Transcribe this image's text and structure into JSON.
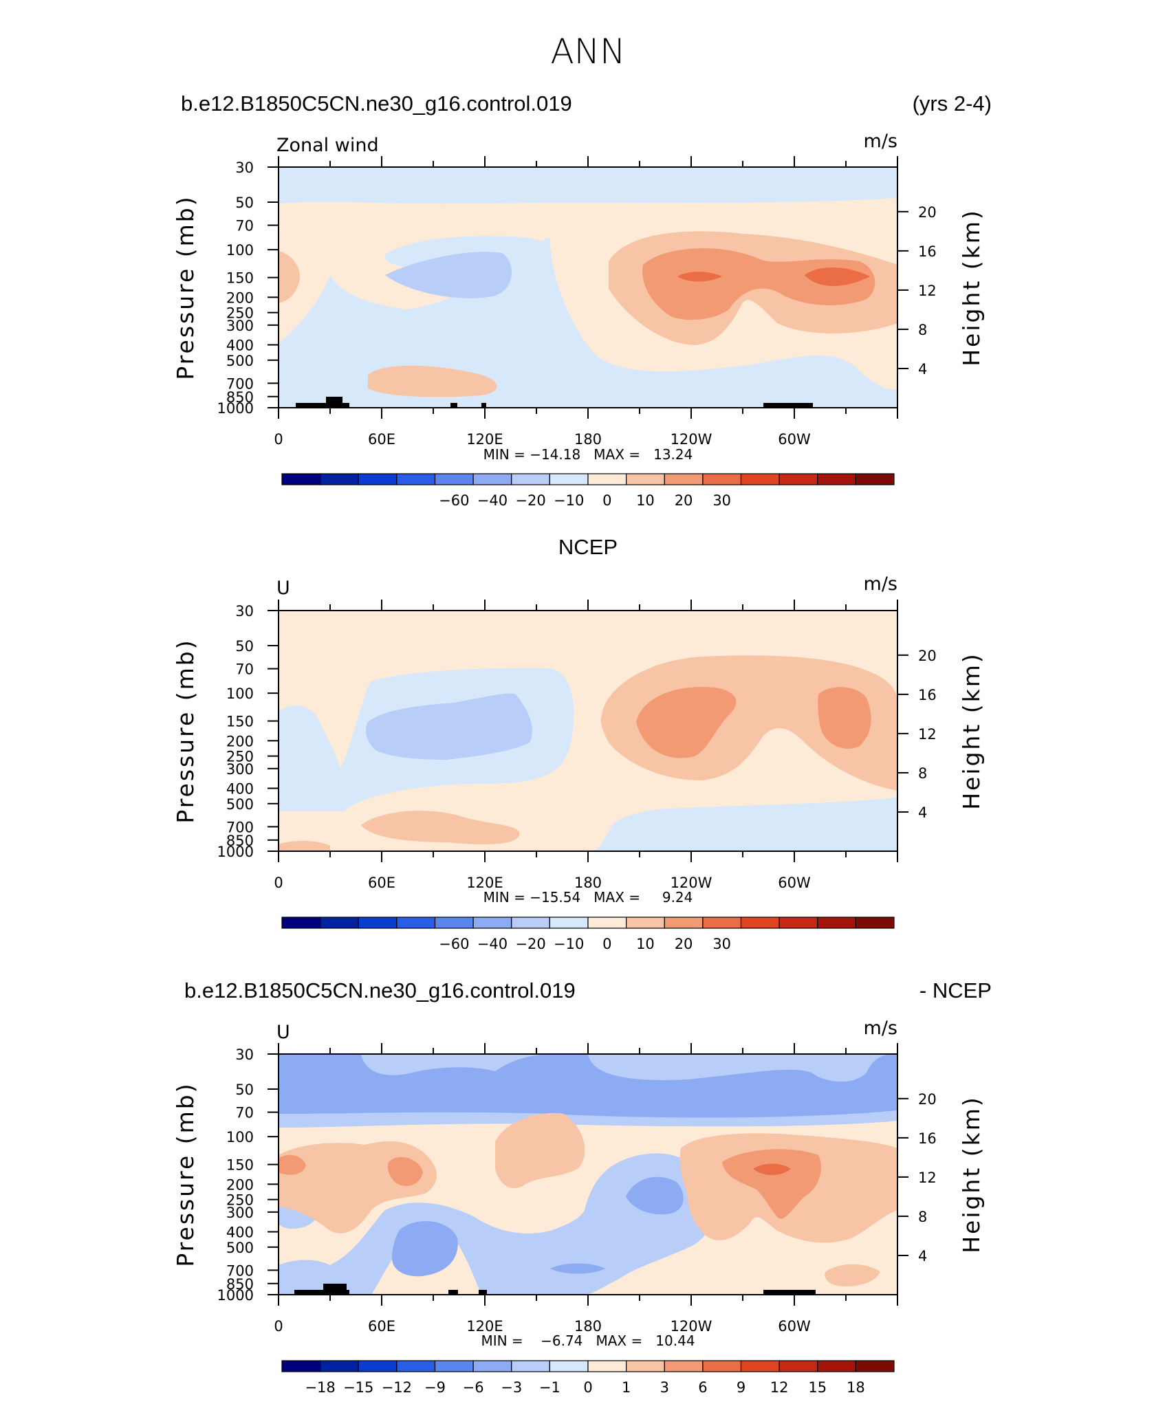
{
  "title": "ANN",
  "chart_data": [
    {
      "type": "heatmap",
      "title_left": "b.e12.B1850C5CN.ne30_g16.control.019",
      "title_center": "",
      "title_right": "(yrs 2-4)",
      "label_left": "Zonal wind",
      "units": "m/s",
      "ylabel": "Pressure (mb)",
      "ylabel_right": "Height (km)",
      "x_ticks": [
        "0",
        "60E",
        "120E",
        "180",
        "120W",
        "60W"
      ],
      "y_ticks": [
        "30",
        "50",
        "70",
        "100",
        "150",
        "200",
        "250",
        "300",
        "400",
        "500",
        "700",
        "850",
        "1000"
      ],
      "y_right_ticks": [
        "20",
        "16",
        "12",
        "8",
        "4"
      ],
      "min_max": "MIN = −14.18   MAX =   13.24",
      "min": -14.18,
      "max": 13.24,
      "colorbar_labels": [
        "−60",
        "−40",
        "−20",
        "−10",
        "0",
        "10",
        "20",
        "30"
      ],
      "colorbar_colors": [
        "#00007f",
        "#0022a0",
        "#0a3cd0",
        "#2a5ee8",
        "#5a86ee",
        "#8cabf2",
        "#b8cdf8",
        "#d8e8fb",
        "#fdebd8",
        "#f8c4a6",
        "#f29a74",
        "#eb6d46",
        "#e04420",
        "#c52814",
        "#a4140a",
        "#7d0a04"
      ],
      "regions": [
        {
          "label": "background",
          "value": 2,
          "color": "#fdebd8"
        },
        {
          "label": "stratospheric easterlies",
          "value": -4,
          "color": "#d8e8fb"
        },
        {
          "label": "tropical easterlies",
          "value": -4,
          "color": "#d8e8fb"
        },
        {
          "label": "easterly core 120E",
          "value": -12,
          "color": "#b8cdf8"
        },
        {
          "label": "westerly jet 120W",
          "value": 7,
          "color": "#f8c4a6"
        },
        {
          "label": "westerly jet core",
          "value": 10,
          "color": "#f29a74"
        },
        {
          "label": "westerly jet maximum",
          "value": 13,
          "color": "#eb6d46"
        }
      ]
    },
    {
      "type": "heatmap",
      "title_left": "",
      "title_center": "NCEP",
      "title_right": "",
      "label_left": "U",
      "units": "m/s",
      "ylabel": "Pressure (mb)",
      "ylabel_right": "Height (km)",
      "x_ticks": [
        "0",
        "60E",
        "120E",
        "180",
        "120W",
        "60W"
      ],
      "y_ticks": [
        "30",
        "50",
        "70",
        "100",
        "150",
        "200",
        "250",
        "300",
        "400",
        "500",
        "700",
        "850",
        "1000"
      ],
      "y_right_ticks": [
        "20",
        "16",
        "12",
        "8",
        "4"
      ],
      "min_max": "MIN = −15.54   MAX =     9.24",
      "min": -15.54,
      "max": 9.24,
      "colorbar_labels": [
        "−60",
        "−40",
        "−20",
        "−10",
        "0",
        "10",
        "20",
        "30"
      ],
      "colorbar_colors": [
        "#00007f",
        "#0022a0",
        "#0a3cd0",
        "#2a5ee8",
        "#5a86ee",
        "#8cabf2",
        "#b8cdf8",
        "#d8e8fb",
        "#fdebd8",
        "#f8c4a6",
        "#f29a74",
        "#eb6d46",
        "#e04420",
        "#c52814",
        "#a4140a",
        "#7d0a04"
      ],
      "regions": [
        {
          "label": "background",
          "value": 2,
          "color": "#fdebd8"
        },
        {
          "label": "tropical easterlies",
          "value": -4,
          "color": "#d8e8fb"
        },
        {
          "label": "easterly core 120E",
          "value": -12,
          "color": "#b8cdf8"
        },
        {
          "label": "westerly jet",
          "value": 7,
          "color": "#f8c4a6"
        },
        {
          "label": "westerly jet core",
          "value": 9,
          "color": "#f29a74"
        }
      ]
    },
    {
      "type": "heatmap",
      "title_left": "b.e12.B1850C5CN.ne30_g16.control.019",
      "title_center": "",
      "title_right": "- NCEP",
      "label_left": "U",
      "units": "m/s",
      "ylabel": "Pressure (mb)",
      "ylabel_right": "Height (km)",
      "x_ticks": [
        "0",
        "60E",
        "120E",
        "180",
        "120W",
        "60W"
      ],
      "y_ticks": [
        "30",
        "50",
        "70",
        "100",
        "150",
        "200",
        "250",
        "300",
        "400",
        "500",
        "700",
        "850",
        "1000"
      ],
      "y_right_ticks": [
        "20",
        "16",
        "12",
        "8",
        "4"
      ],
      "min_max": "MIN =    −6.74   MAX =   10.44",
      "min": -6.74,
      "max": 10.44,
      "colorbar_labels": [
        "−18",
        "−15",
        "−12",
        "−9",
        "−6",
        "−3",
        "−1",
        "0",
        "1",
        "3",
        "6",
        "9",
        "12",
        "15",
        "18"
      ],
      "colorbar_colors": [
        "#00007f",
        "#0022a0",
        "#0a3cd0",
        "#2a5ee8",
        "#5a86ee",
        "#8cabf2",
        "#b8cdf8",
        "#d8e8fb",
        "#fdebd8",
        "#f8c4a6",
        "#f29a74",
        "#eb6d46",
        "#e04420",
        "#c52814",
        "#a4140a",
        "#7d0a04"
      ],
      "regions": [
        {
          "label": "background",
          "value": 0.5,
          "color": "#fdebd8"
        },
        {
          "label": "stratospheric bias",
          "value": -4,
          "color": "#8cabf2"
        },
        {
          "label": "stratospheric bias edges",
          "value": -2,
          "color": "#b8cdf8"
        },
        {
          "label": "negative bias",
          "value": -2,
          "color": "#b8cdf8"
        },
        {
          "label": "negative bias core",
          "value": -5,
          "color": "#8cabf2"
        },
        {
          "label": "positive bias",
          "value": 2,
          "color": "#f8c4a6"
        },
        {
          "label": "positive bias core",
          "value": 5,
          "color": "#f29a74"
        },
        {
          "label": "positive bias maximum",
          "value": 8,
          "color": "#eb6d46"
        }
      ]
    }
  ]
}
